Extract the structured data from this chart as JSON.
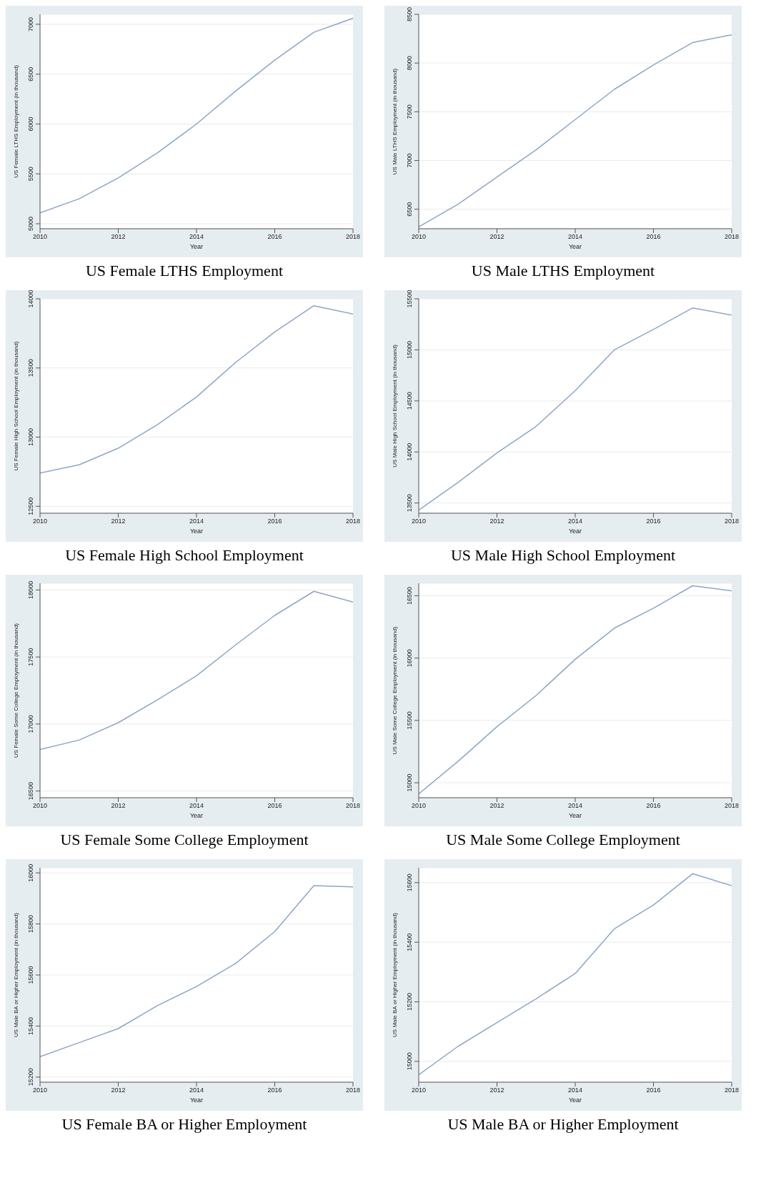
{
  "chart_data": [
    {
      "type": "line",
      "title": "US Female LTHS Employment",
      "xlabel": "Year",
      "ylabel": "US Female LTHS Employment (in thousand)",
      "x": [
        2010,
        2011,
        2012,
        2013,
        2014,
        2015,
        2016,
        2017,
        2018
      ],
      "values": [
        5110,
        5250,
        5460,
        5710,
        6000,
        6330,
        6640,
        6920,
        7060
      ],
      "color": "#8da6c4",
      "xlim": [
        2010,
        2018
      ],
      "xticks": [
        2010,
        2012,
        2014,
        2016,
        2018
      ],
      "ylim": [
        4950,
        7100
      ],
      "yticks": [
        5000,
        5500,
        6000,
        6500,
        7000
      ],
      "grid": "y"
    },
    {
      "type": "line",
      "title": "US Male LTHS Employment",
      "xlabel": "Year",
      "ylabel": "US Male LTHS Employment (in thousand)",
      "x": [
        2010,
        2011,
        2012,
        2013,
        2014,
        2015,
        2016,
        2017,
        2018
      ],
      "values": [
        6320,
        6550,
        6830,
        7110,
        7420,
        7730,
        7980,
        8210,
        8290
      ],
      "color": "#8da6c4",
      "xlim": [
        2010,
        2018
      ],
      "xticks": [
        2010,
        2012,
        2014,
        2016,
        2018
      ],
      "ylim": [
        6300,
        8500
      ],
      "yticks": [
        6500,
        7000,
        7500,
        8000,
        8500
      ],
      "grid": "y"
    },
    {
      "type": "line",
      "title": "US Female High School Employment",
      "xlabel": "Year",
      "ylabel": "US Female High School Employment (in thousand)",
      "x": [
        2010,
        2011,
        2012,
        2013,
        2014,
        2015,
        2016,
        2017,
        2018
      ],
      "values": [
        12740,
        12800,
        12920,
        13090,
        13290,
        13540,
        13760,
        13950,
        13890
      ],
      "color": "#8da6c4",
      "xlim": [
        2010,
        2018
      ],
      "xticks": [
        2010,
        2012,
        2014,
        2016,
        2018
      ],
      "ylim": [
        12450,
        14000
      ],
      "yticks": [
        12500,
        13000,
        13500,
        14000
      ],
      "grid": "y"
    },
    {
      "type": "line",
      "title": "US Male High School Employment",
      "xlabel": "Year",
      "ylabel": "US Male High School Employment (in thousand)",
      "x": [
        2010,
        2011,
        2012,
        2013,
        2014,
        2015,
        2016,
        2017,
        2018
      ],
      "values": [
        13430,
        13700,
        13990,
        14250,
        14600,
        15000,
        15200,
        15410,
        15340
      ],
      "color": "#8da6c4",
      "xlim": [
        2010,
        2018
      ],
      "xticks": [
        2010,
        2012,
        2014,
        2016,
        2018
      ],
      "ylim": [
        13400,
        15500
      ],
      "yticks": [
        13500,
        14000,
        14500,
        15000,
        15500
      ],
      "grid": "y"
    },
    {
      "type": "line",
      "title": "US Female Some College Employment",
      "xlabel": "Year",
      "ylabel": "US Female Some College Employment (in thousand)",
      "x": [
        2010,
        2011,
        2012,
        2013,
        2014,
        2015,
        2016,
        2017,
        2018
      ],
      "values": [
        16810,
        16880,
        17010,
        17180,
        17360,
        17590,
        17810,
        17990,
        17910
      ],
      "color": "#8da6c4",
      "xlim": [
        2010,
        2018
      ],
      "xticks": [
        2010,
        2012,
        2014,
        2016,
        2018
      ],
      "ylim": [
        16450,
        18050
      ],
      "yticks": [
        16500,
        17000,
        17500,
        18000
      ],
      "grid": "y"
    },
    {
      "type": "line",
      "title": "US Male Some College Employment",
      "xlabel": "Year",
      "ylabel": "US Male Some College Employment (in thousand)",
      "x": [
        2010,
        2011,
        2012,
        2013,
        2014,
        2015,
        2016,
        2017,
        2018
      ],
      "values": [
        14910,
        15170,
        15450,
        15700,
        15990,
        16240,
        16400,
        16580,
        16540
      ],
      "color": "#8da6c4",
      "xlim": [
        2010,
        2018
      ],
      "xticks": [
        2010,
        2012,
        2014,
        2016,
        2018
      ],
      "ylim": [
        14880,
        16600
      ],
      "yticks": [
        15000,
        15500,
        16000,
        16500
      ],
      "grid": "y"
    },
    {
      "type": "line",
      "title": "US Female BA or Higher Employment",
      "xlabel": "Year",
      "ylabel": "US Male BA or Higher Employment (in thousand)",
      "x": [
        2010,
        2011,
        2012,
        2013,
        2014,
        2015,
        2016,
        2017,
        2018
      ],
      "values": [
        15280,
        15335,
        15390,
        15480,
        15555,
        15645,
        15770,
        15950,
        15945
      ],
      "color": "#8da6c4",
      "xlim": [
        2010,
        2018
      ],
      "xticks": [
        2010,
        2012,
        2014,
        2016,
        2018
      ],
      "ylim": [
        15180,
        16020
      ],
      "yticks": [
        15200,
        15400,
        15600,
        15800,
        16000
      ],
      "grid": "y"
    },
    {
      "type": "line",
      "title": "US Male BA or Higher Employment",
      "xlabel": "Year",
      "ylabel": "US Male BA or Higher Employment (in thousand)",
      "x": [
        2010,
        2011,
        2012,
        2013,
        2014,
        2015,
        2016,
        2017,
        2018
      ],
      "values": [
        14955,
        15050,
        15130,
        15210,
        15295,
        15445,
        15525,
        15630,
        15590
      ],
      "color": "#8da6c4",
      "xlim": [
        2010,
        2018
      ],
      "xticks": [
        2010,
        2012,
        2014,
        2016,
        2018
      ],
      "ylim": [
        14930,
        15650
      ],
      "yticks": [
        15000,
        15200,
        15400,
        15600
      ],
      "grid": "y"
    }
  ]
}
